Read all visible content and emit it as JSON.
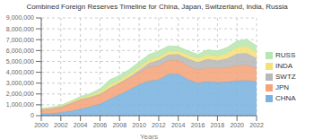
{
  "chart_data": {
    "type": "area",
    "stacked": true,
    "title": "Combined Foreign Reserves Timeline for China, Japan, Switzerland, India, Russia",
    "x_label": "Years",
    "x": [
      2000,
      2001,
      2002,
      2003,
      2004,
      2005,
      2006,
      2007,
      2008,
      2009,
      2010,
      2011,
      2012,
      2013,
      2014,
      2015,
      2016,
      2017,
      2018,
      2019,
      2020,
      2021,
      2022
    ],
    "series": [
      {
        "name": "CHNA",
        "color": "#7ab3e0",
        "values": [
          168000,
          215000,
          291000,
          408000,
          614000,
          822000,
          1069000,
          1528000,
          1946000,
          2399000,
          2847000,
          3202000,
          3312000,
          3821000,
          3843000,
          3330000,
          3011000,
          3140000,
          3073000,
          3108000,
          3217000,
          3250000,
          3128000
        ]
      },
      {
        "name": "JPN",
        "color": "#f4a47a",
        "values": [
          355000,
          395000,
          461000,
          664000,
          834000,
          835000,
          879000,
          952000,
          1009000,
          1049000,
          1096000,
          1296000,
          1268000,
          1266000,
          1260000,
          1233000,
          1216000,
          1264000,
          1270000,
          1323000,
          1406000,
          1406000,
          1228000
        ]
      },
      {
        "name": "SWTZ",
        "color": "#b8b8b8",
        "values": [
          75000,
          77000,
          81000,
          83000,
          60000,
          57000,
          59000,
          75000,
          75000,
          98000,
          226000,
          331000,
          531000,
          536000,
          545000,
          678000,
          679000,
          811000,
          744000,
          840000,
          1072000,
          1110000,
          923000
        ]
      },
      {
        "name": "INDA",
        "color": "#f5e07a",
        "values": [
          38000,
          46000,
          68000,
          99000,
          127000,
          132000,
          171000,
          267000,
          246000,
          266000,
          297000,
          297000,
          294000,
          296000,
          323000,
          352000,
          360000,
          410000,
          393000,
          457000,
          578000,
          634000,
          562000
        ]
      },
      {
        "name": "RUSS",
        "color": "#b8e6b0",
        "values": [
          28000,
          36000,
          44000,
          77000,
          124000,
          182000,
          304000,
          479000,
          427000,
          439000,
          479000,
          497000,
          537000,
          510000,
          385000,
          368000,
          378000,
          433000,
          468000,
          554000,
          596000,
          630000,
          582000
        ]
      }
    ],
    "xlim": [
      2000,
      2022
    ],
    "xticks": [
      2000,
      2002,
      2004,
      2006,
      2008,
      2010,
      2012,
      2014,
      2016,
      2018,
      2020,
      2022
    ],
    "ylim": [
      0,
      9000000
    ],
    "yticks": [
      0,
      {
        "value": 1000000,
        "label": "1,000,000"
      },
      {
        "value": 2000000,
        "label": "2,000,000"
      },
      {
        "value": 3000000,
        "label": "3,000,000"
      },
      {
        "value": 4000000,
        "label": "4,000,000"
      },
      {
        "value": 5000000,
        "label": "5,000,000"
      },
      {
        "value": 6000000,
        "label": "6,000,000"
      },
      {
        "value": 7000000,
        "label": "7,000,000"
      },
      {
        "value": 8000000,
        "label": "8,000,000"
      },
      {
        "value": 9000000,
        "label": "9,000,000"
      }
    ],
    "grid": true,
    "legend": "right"
  }
}
